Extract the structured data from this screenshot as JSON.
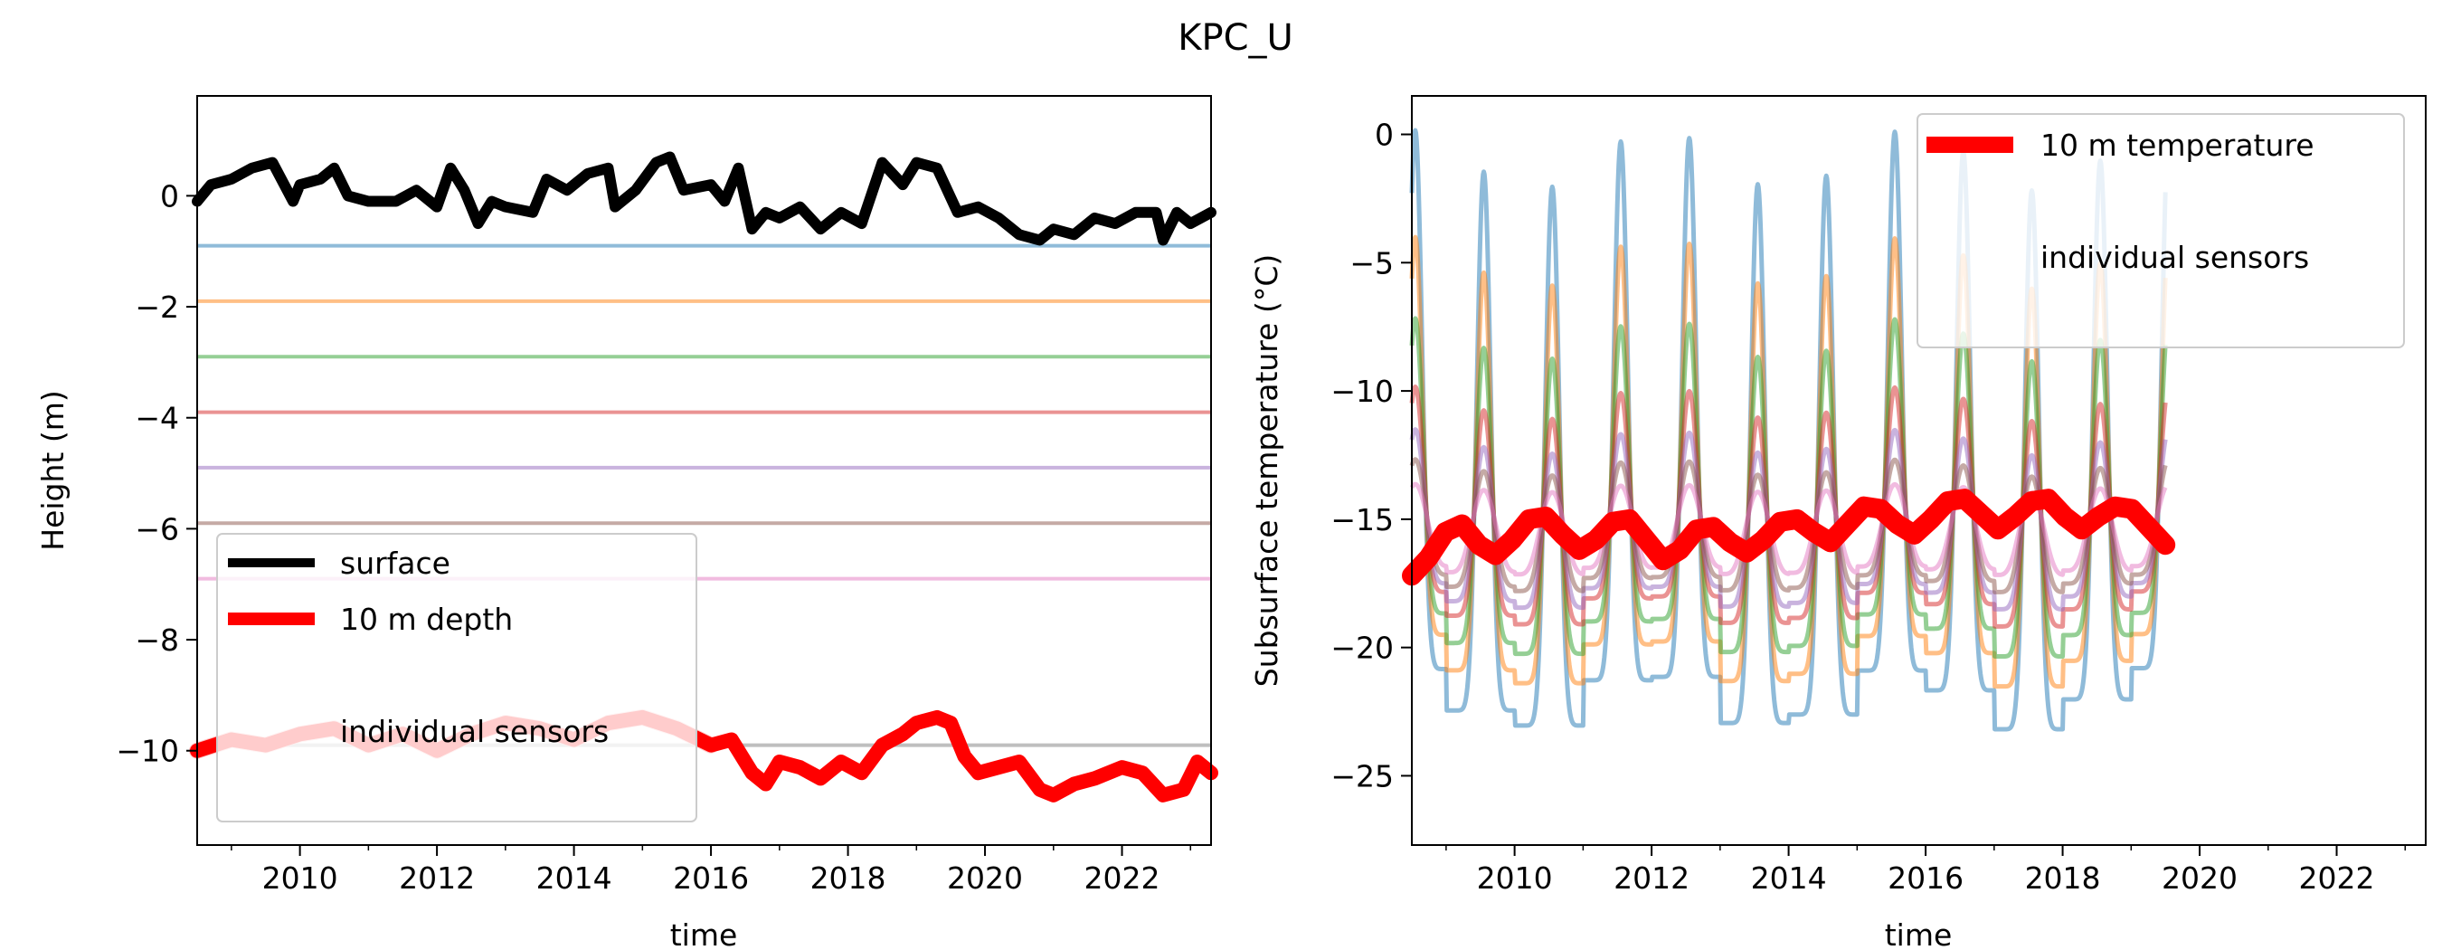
{
  "figure_title": "KPC_U",
  "chart_data": [
    {
      "type": "line",
      "title": "",
      "xlabel": "time",
      "ylabel": "Height (m)",
      "xlim": [
        2008.5,
        2023.3
      ],
      "ylim": [
        -11.7,
        1.8
      ],
      "xticks": [
        2010,
        2012,
        2014,
        2016,
        2018,
        2020,
        2022
      ],
      "xticklabels": [
        "2010",
        "2012",
        "2014",
        "2016",
        "2018",
        "2020",
        "2022"
      ],
      "yticks": [
        0,
        -2,
        -4,
        -6,
        -8,
        -10
      ],
      "yticklabels": [
        "0",
        "−2",
        "−4",
        "−6",
        "−8",
        "−10"
      ],
      "grid": false,
      "legend_position": "lower-left",
      "legend": [
        "surface",
        "10 m depth",
        "individual sensors"
      ],
      "series": [
        {
          "name": "surface",
          "color": "#000000",
          "x": [
            2008.5,
            2008.7,
            2009.0,
            2009.3,
            2009.6,
            2009.9,
            2010.0,
            2010.3,
            2010.5,
            2010.7,
            2011.0,
            2011.4,
            2011.7,
            2012.0,
            2012.2,
            2012.4,
            2012.6,
            2012.8,
            2013.0,
            2013.4,
            2013.6,
            2013.9,
            2014.2,
            2014.5,
            2014.6,
            2014.9,
            2015.2,
            2015.4,
            2015.6,
            2016.0,
            2016.2,
            2016.4,
            2016.6,
            2016.8,
            2017.0,
            2017.3,
            2017.6,
            2017.9,
            2018.2,
            2018.5,
            2018.8,
            2019.0,
            2019.3,
            2019.6,
            2019.9,
            2020.2,
            2020.5,
            2020.8,
            2021.0,
            2021.3,
            2021.6,
            2021.9,
            2022.2,
            2022.5,
            2022.6,
            2022.8,
            2023.0,
            2023.3
          ],
          "y": [
            -0.1,
            0.2,
            0.3,
            0.5,
            0.6,
            -0.1,
            0.2,
            0.3,
            0.5,
            0.0,
            -0.1,
            -0.1,
            0.1,
            -0.2,
            0.5,
            0.1,
            -0.5,
            -0.1,
            -0.2,
            -0.3,
            0.3,
            0.1,
            0.4,
            0.5,
            -0.2,
            0.1,
            0.6,
            0.7,
            0.1,
            0.2,
            -0.1,
            0.5,
            -0.6,
            -0.3,
            -0.4,
            -0.2,
            -0.6,
            -0.3,
            -0.5,
            0.6,
            0.2,
            0.6,
            0.5,
            -0.3,
            -0.2,
            -0.4,
            -0.7,
            -0.8,
            -0.6,
            -0.7,
            -0.4,
            -0.5,
            -0.3,
            -0.3,
            -0.8,
            -0.3,
            -0.5,
            -0.3
          ]
        },
        {
          "name": "10 m depth",
          "color": "#ff0000",
          "x": [
            2008.5,
            2009.0,
            2009.5,
            2010.0,
            2010.5,
            2011.0,
            2011.5,
            2012.0,
            2012.5,
            2013.0,
            2013.5,
            2014.0,
            2014.5,
            2015.0,
            2015.5,
            2016.0,
            2016.3,
            2016.6,
            2016.8,
            2017.0,
            2017.3,
            2017.6,
            2017.9,
            2018.2,
            2018.5,
            2018.8,
            2019.0,
            2019.3,
            2019.5,
            2019.7,
            2019.9,
            2020.2,
            2020.5,
            2020.8,
            2021.0,
            2021.3,
            2021.6,
            2022.0,
            2022.3,
            2022.6,
            2022.9,
            2023.1,
            2023.3
          ],
          "y": [
            -10.0,
            -9.8,
            -9.9,
            -9.7,
            -9.6,
            -9.9,
            -9.7,
            -10.0,
            -9.7,
            -9.5,
            -9.6,
            -9.8,
            -9.5,
            -9.4,
            -9.6,
            -9.9,
            -9.8,
            -10.4,
            -10.6,
            -10.2,
            -10.3,
            -10.5,
            -10.2,
            -10.4,
            -9.9,
            -9.7,
            -9.5,
            -9.4,
            -9.5,
            -10.1,
            -10.4,
            -10.3,
            -10.2,
            -10.7,
            -10.8,
            -10.6,
            -10.5,
            -10.3,
            -10.4,
            -10.8,
            -10.7,
            -10.2,
            -10.4
          ]
        }
      ],
      "sensors": [
        {
          "name": "",
          "color": "#1f77b4",
          "depth": -0.9
        },
        {
          "name": "",
          "color": "#ff7f0e",
          "depth": -1.9
        },
        {
          "name": "",
          "color": "#2ca02c",
          "depth": -2.9
        },
        {
          "name": "",
          "color": "#d62728",
          "depth": -3.9
        },
        {
          "name": "",
          "color": "#9467bd",
          "depth": -4.9
        },
        {
          "name": "",
          "color": "#8c564b",
          "depth": -5.9
        },
        {
          "name": "",
          "color": "#e377c2",
          "depth": -6.9
        },
        {
          "name": "",
          "color": "#7f7f7f",
          "depth": -9.9
        }
      ]
    },
    {
      "type": "line",
      "title": "",
      "xlabel": "time",
      "ylabel": "Subsurface temperature (°C)",
      "xlim": [
        2008.5,
        2023.3
      ],
      "ylim": [
        -27.7,
        1.5
      ],
      "xticks": [
        2010,
        2012,
        2014,
        2016,
        2018,
        2020,
        2022
      ],
      "xticklabels": [
        "2010",
        "2012",
        "2014",
        "2016",
        "2018",
        "2020",
        "2022"
      ],
      "yticks": [
        0,
        -5,
        -10,
        -15,
        -20,
        -25
      ],
      "yticklabels": [
        "0",
        "−5",
        "−10",
        "−15",
        "−20",
        "−25"
      ],
      "grid": false,
      "legend_position": "upper-right",
      "legend": [
        "10 m temperature",
        "individual sensors"
      ],
      "series": [
        {
          "name": "10 m temperature",
          "color": "#ff0000",
          "mean": -15.6,
          "amplitude": 0.9,
          "x_start": 2008.5,
          "x_end": 2019.5,
          "values_y": [
            -17.2,
            -16.5,
            -15.5,
            -15.2,
            -16.0,
            -16.4,
            -15.8,
            -15.0,
            -14.9,
            -15.6,
            -16.2,
            -15.8,
            -15.1,
            -15.0,
            -15.8,
            -16.6,
            -16.2,
            -15.4,
            -15.3,
            -15.9,
            -16.3,
            -15.8,
            -15.1,
            -15.0,
            -15.5,
            -15.9,
            -15.2,
            -14.5,
            -14.6,
            -15.2,
            -15.6,
            -15.0,
            -14.3,
            -14.2,
            -14.8,
            -15.4,
            -14.9,
            -14.3,
            -14.2,
            -14.9,
            -15.4,
            -14.9,
            -14.5,
            -14.6,
            -15.3,
            -16.0
          ]
        }
      ],
      "sensors": [
        {
          "name": "",
          "color": "#1f77b4",
          "winter_min": -22.0,
          "summer_max": -1.0
        },
        {
          "name": "",
          "color": "#ff7f0e",
          "winter_min": -20.5,
          "summer_max": -5.0
        },
        {
          "name": "",
          "color": "#2ca02c",
          "winter_min": -19.5,
          "summer_max": -8.0
        },
        {
          "name": "",
          "color": "#d62728",
          "winter_min": -18.5,
          "summer_max": -10.5
        },
        {
          "name": "",
          "color": "#9467bd",
          "winter_min": -18.0,
          "summer_max": -12.0
        },
        {
          "name": "",
          "color": "#8c564b",
          "winter_min": -17.5,
          "summer_max": -13.0
        },
        {
          "name": "",
          "color": "#e377c2",
          "winter_min": -17.0,
          "summer_max": -13.8
        }
      ]
    }
  ]
}
